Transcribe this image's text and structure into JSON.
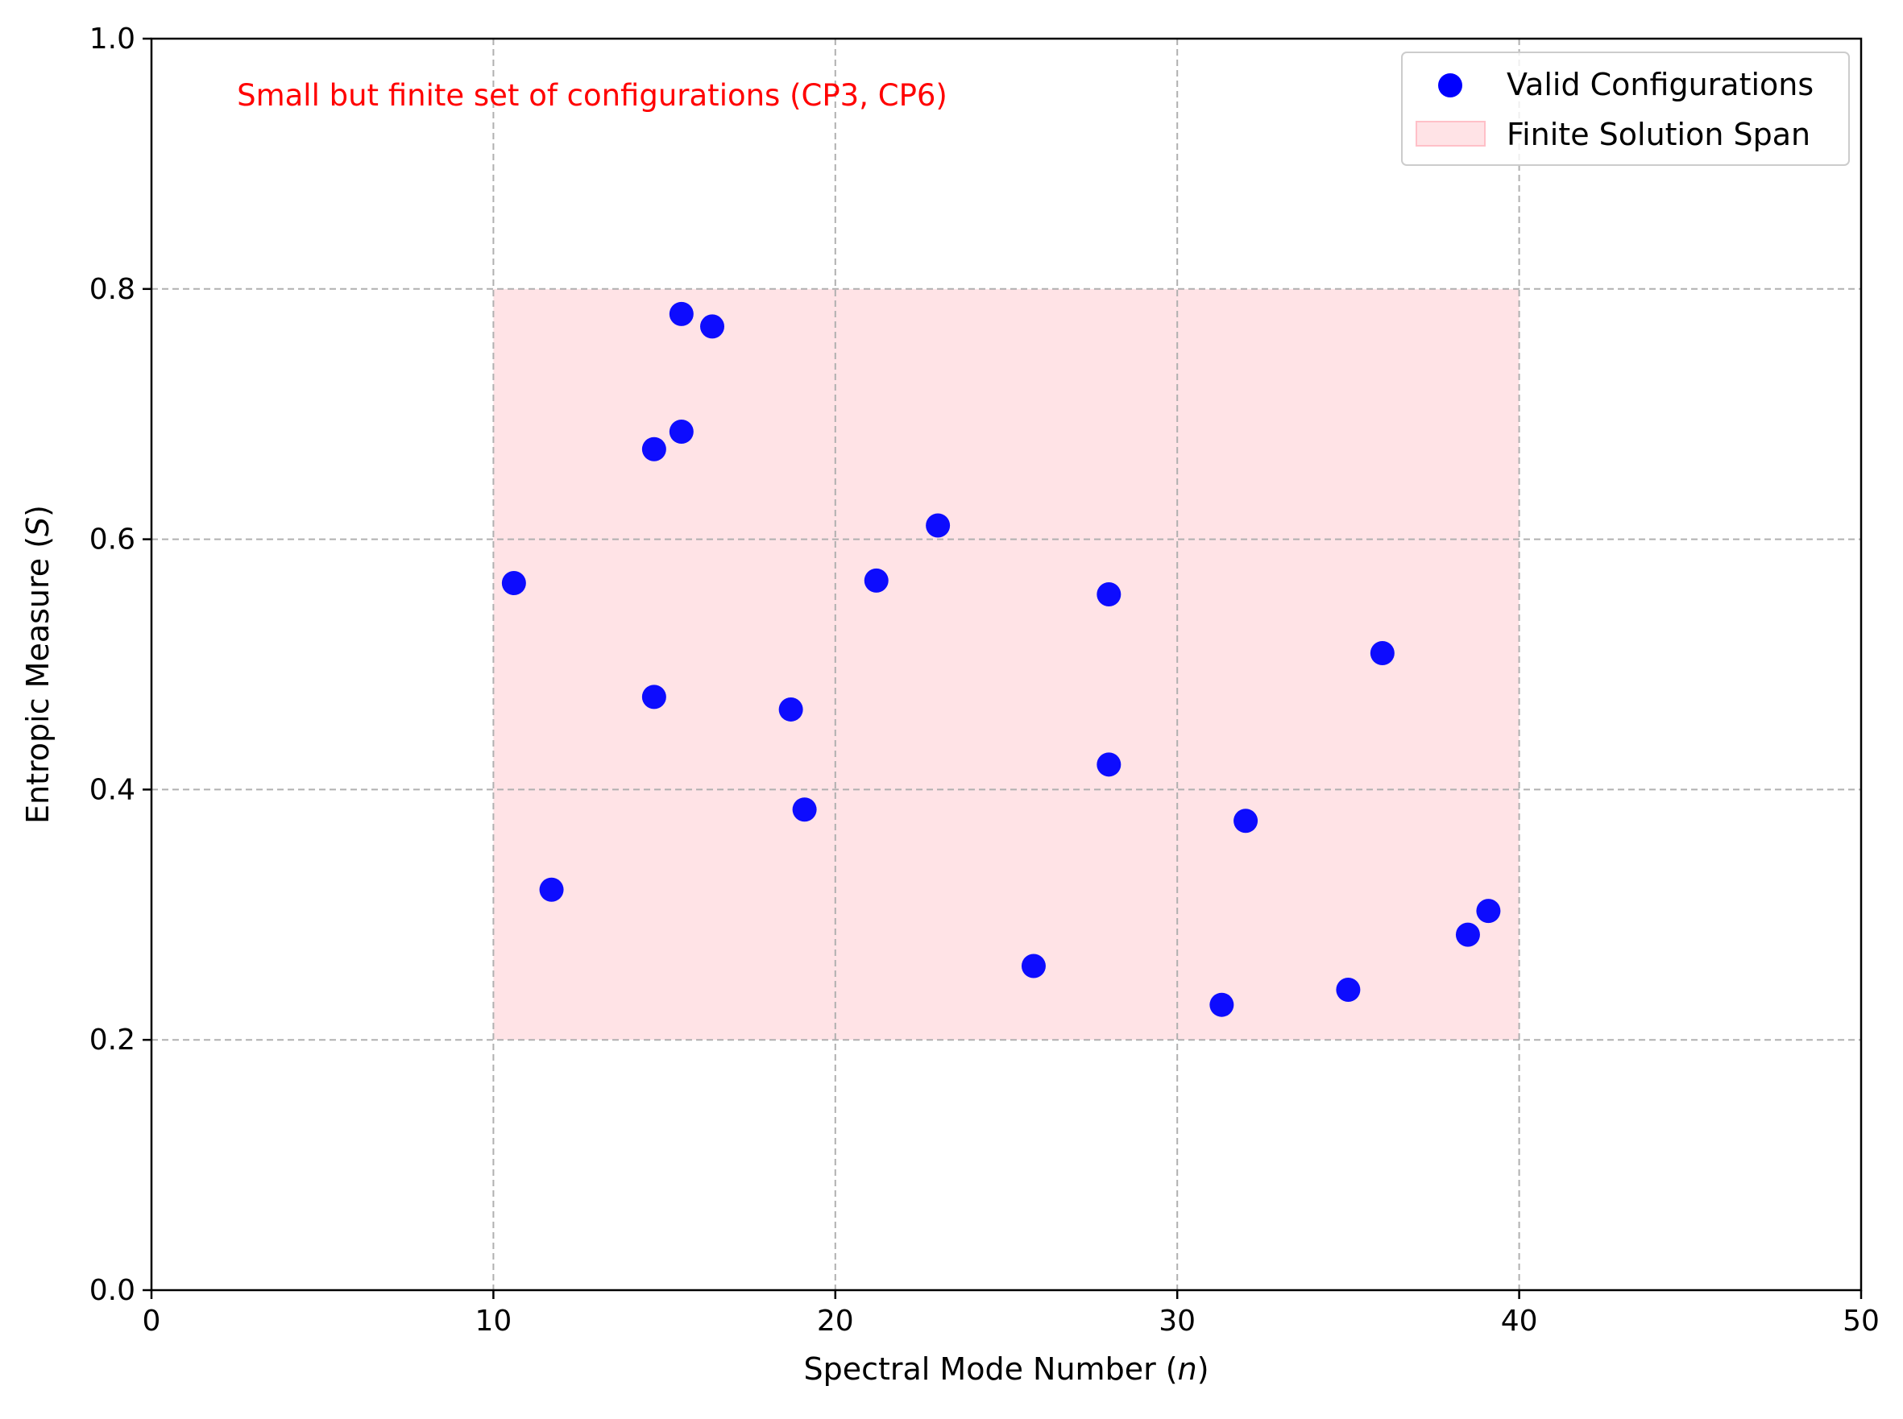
{
  "colors": {
    "points": "#0000ff",
    "span_fill": "#ffc0c8",
    "span_alpha": 0.45,
    "annotation": "#ff0000",
    "grid": "#b0b0b0"
  },
  "chart_data": {
    "type": "scatter",
    "xlabel_main": "Spectral Mode Number (",
    "xlabel_var": "n",
    "xlabel_tail": ")",
    "ylabel_main": "Entropic Measure (",
    "ylabel_var": "S",
    "ylabel_tail": ")",
    "xlim": [
      0,
      50
    ],
    "ylim": [
      0,
      1.0
    ],
    "xticks": [
      0,
      10,
      20,
      30,
      40,
      50
    ],
    "xtick_labels": [
      "0",
      "10",
      "20",
      "30",
      "40",
      "50"
    ],
    "yticks": [
      0.0,
      0.2,
      0.4,
      0.6,
      0.8,
      1.0
    ],
    "ytick_labels": [
      "0.0",
      "0.2",
      "0.4",
      "0.6",
      "0.8",
      "1.0"
    ],
    "grid": true,
    "grid_style": "dashed",
    "legend_position": "top-right",
    "annotation": {
      "text": "Small but finite set of configurations (CP3, CP6)",
      "x": 2.5,
      "y": 0.955
    },
    "span": {
      "name": "Finite Solution Span",
      "x_range": [
        10,
        40
      ],
      "y_range": [
        0.2,
        0.8
      ]
    },
    "series": [
      {
        "name": "Valid Configurations",
        "points": [
          {
            "x": 10.6,
            "y": 0.565
          },
          {
            "x": 11.7,
            "y": 0.32
          },
          {
            "x": 14.7,
            "y": 0.672
          },
          {
            "x": 14.7,
            "y": 0.474
          },
          {
            "x": 15.5,
            "y": 0.78
          },
          {
            "x": 15.5,
            "y": 0.686
          },
          {
            "x": 16.4,
            "y": 0.77
          },
          {
            "x": 18.7,
            "y": 0.464
          },
          {
            "x": 19.1,
            "y": 0.384
          },
          {
            "x": 21.2,
            "y": 0.567
          },
          {
            "x": 23.0,
            "y": 0.611
          },
          {
            "x": 25.8,
            "y": 0.259
          },
          {
            "x": 28.0,
            "y": 0.556
          },
          {
            "x": 28.0,
            "y": 0.42
          },
          {
            "x": 31.3,
            "y": 0.228
          },
          {
            "x": 32.0,
            "y": 0.375
          },
          {
            "x": 35.0,
            "y": 0.24
          },
          {
            "x": 36.0,
            "y": 0.509
          },
          {
            "x": 38.5,
            "y": 0.284
          },
          {
            "x": 39.1,
            "y": 0.303
          }
        ]
      }
    ]
  }
}
